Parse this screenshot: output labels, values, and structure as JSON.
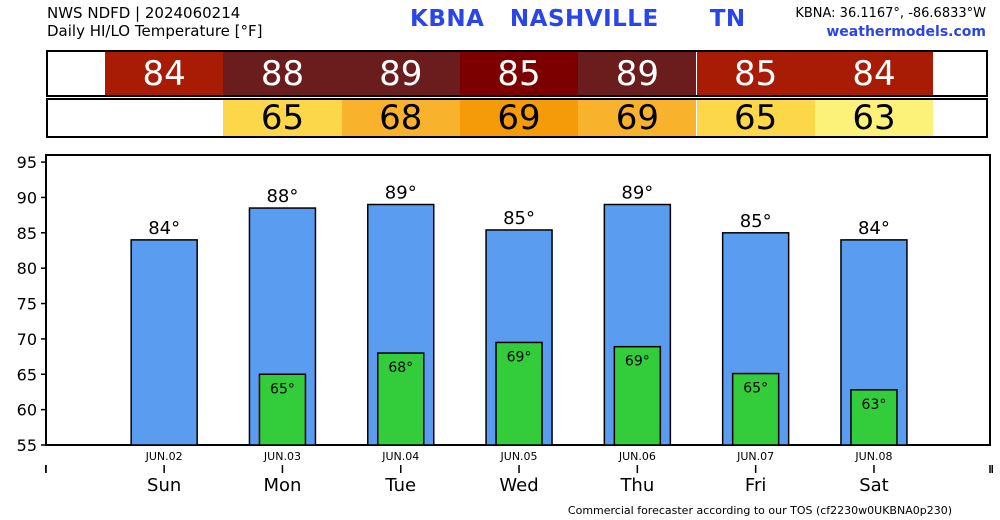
{
  "header": {
    "line1": "NWS NDFD | 2024060214",
    "line2": "Daily HI/LO Temperature [°F]",
    "station": "KBNA   NASHVILLE      TN",
    "coords": "KBNA: 36.1167°, -86.6833°W",
    "site": "weathermodels.com"
  },
  "highs_row": [
    {
      "label": "84",
      "color": "#a81c06"
    },
    {
      "label": "88",
      "color": "#6b1c1c"
    },
    {
      "label": "89",
      "color": "#6b1c1c"
    },
    {
      "label": "85",
      "color": "#7d0000"
    },
    {
      "label": "89",
      "color": "#6b1c1c"
    },
    {
      "label": "85",
      "color": "#a81c06"
    },
    {
      "label": "84",
      "color": "#a81c06"
    }
  ],
  "lows_row": [
    {
      "label": "",
      "color": ""
    },
    {
      "label": "65",
      "color": "#fcd74a"
    },
    {
      "label": "68",
      "color": "#f9b22c"
    },
    {
      "label": "69",
      "color": "#f59b0a"
    },
    {
      "label": "69",
      "color": "#f9b22c"
    },
    {
      "label": "65",
      "color": "#fcd74a"
    },
    {
      "label": "63",
      "color": "#fcf279"
    }
  ],
  "chart_data": {
    "type": "bar",
    "categories": [
      "Sun",
      "Mon",
      "Tue",
      "Wed",
      "Thu",
      "Fri",
      "Sat"
    ],
    "dates": [
      "JUN.02",
      "JUN.03",
      "JUN.04",
      "JUN.05",
      "JUN.06",
      "JUN.07",
      "JUN.08"
    ],
    "series": [
      {
        "values": [
          84,
          88.5,
          89,
          85.4,
          89,
          85,
          84
        ],
        "labels": [
          "84°",
          "88°",
          "89°",
          "85°",
          "89°",
          "85°",
          "84°"
        ],
        "color": "#5a9cf0"
      },
      {
        "values": [
          null,
          65,
          68,
          69.5,
          68.9,
          65.1,
          62.8
        ],
        "labels": [
          "",
          "65°",
          "68°",
          "69°",
          "69°",
          "65°",
          "63°"
        ],
        "color": "#33cc3a"
      }
    ],
    "yticks": [
      55,
      60,
      65,
      70,
      75,
      80,
      85,
      90,
      95
    ],
    "ylim": [
      55,
      96
    ],
    "grid": false
  },
  "footer": "Commercial forecaster according to our TOS (cf2230w0UKBNA0p230)"
}
